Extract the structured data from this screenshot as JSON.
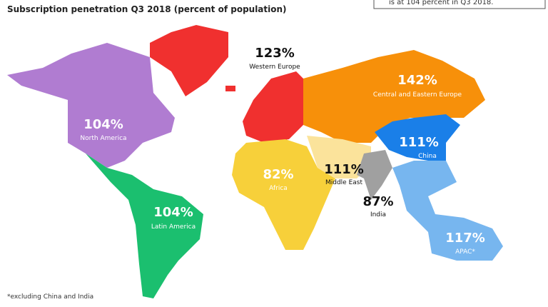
{
  "header": {
    "title": "Subscription penetration Q3 2018 (percent of population)",
    "note": "is at 104 percent in Q3 2018."
  },
  "regions": [
    {
      "value": "104%",
      "name": "North America"
    },
    {
      "value": "104%",
      "name": "Latin America"
    },
    {
      "value": "123%",
      "name": "Western Europe"
    },
    {
      "value": "142%",
      "name": "Central and Eastern Europe"
    },
    {
      "value": "82%",
      "name": "Africa"
    },
    {
      "value": "111%",
      "name": "Middle East"
    },
    {
      "value": "87%",
      "name": "India"
    },
    {
      "value": "111%",
      "name": "China"
    },
    {
      "value": "117%",
      "name": "APAC*"
    }
  ],
  "footnote": "*excluding China and India"
}
